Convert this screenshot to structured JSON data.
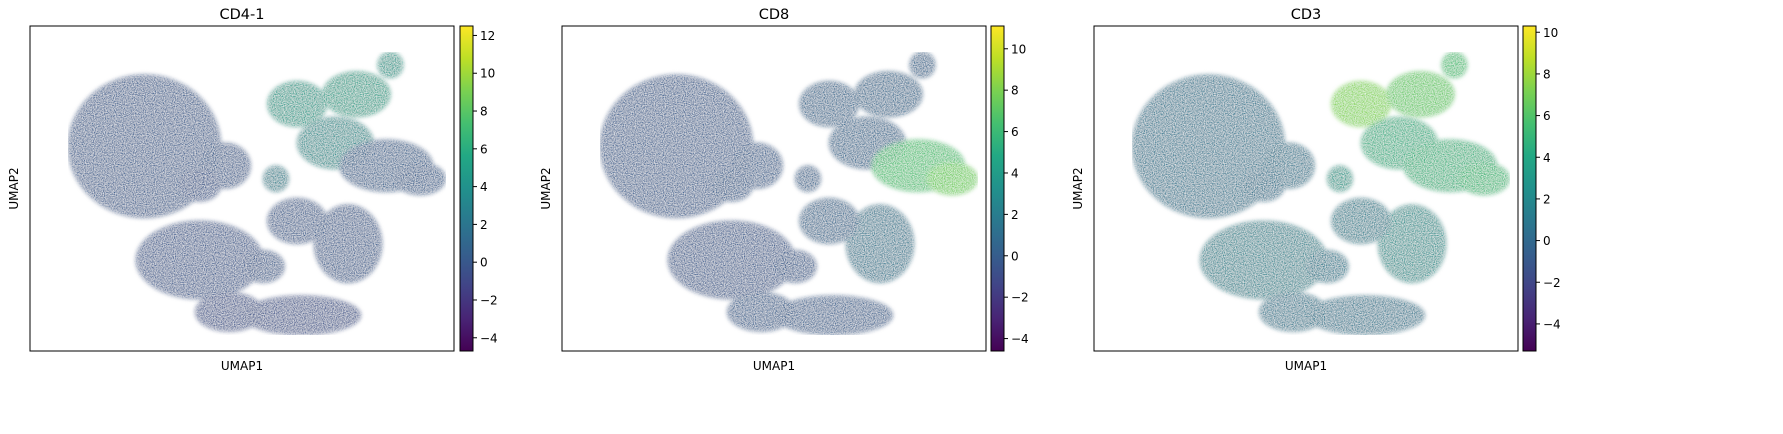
{
  "chart_data": [
    {
      "type": "scatter",
      "title": "CD4-1",
      "xlabel": "UMAP1",
      "ylabel": "UMAP2",
      "colormap": "viridis",
      "colorbar": {
        "min": -4.7,
        "max": 12.5,
        "ticks": [
          -4,
          -2,
          0,
          2,
          4,
          6,
          8,
          10,
          12
        ]
      },
      "grid": false,
      "axis_ticks": false
    },
    {
      "type": "scatter",
      "title": "CD8",
      "xlabel": "UMAP1",
      "ylabel": "UMAP2",
      "colormap": "viridis",
      "colorbar": {
        "min": -4.6,
        "max": 11.1,
        "ticks": [
          -4,
          -2,
          0,
          2,
          4,
          6,
          8,
          10
        ]
      },
      "grid": false,
      "axis_ticks": false
    },
    {
      "type": "scatter",
      "title": "CD3",
      "xlabel": "UMAP1",
      "ylabel": "UMAP2",
      "colormap": "viridis",
      "colorbar": {
        "min": -5.3,
        "max": 10.3,
        "ticks": [
          -4,
          -2,
          0,
          2,
          4,
          6,
          8,
          10
        ]
      },
      "grid": false,
      "axis_ticks": false
    }
  ]
}
